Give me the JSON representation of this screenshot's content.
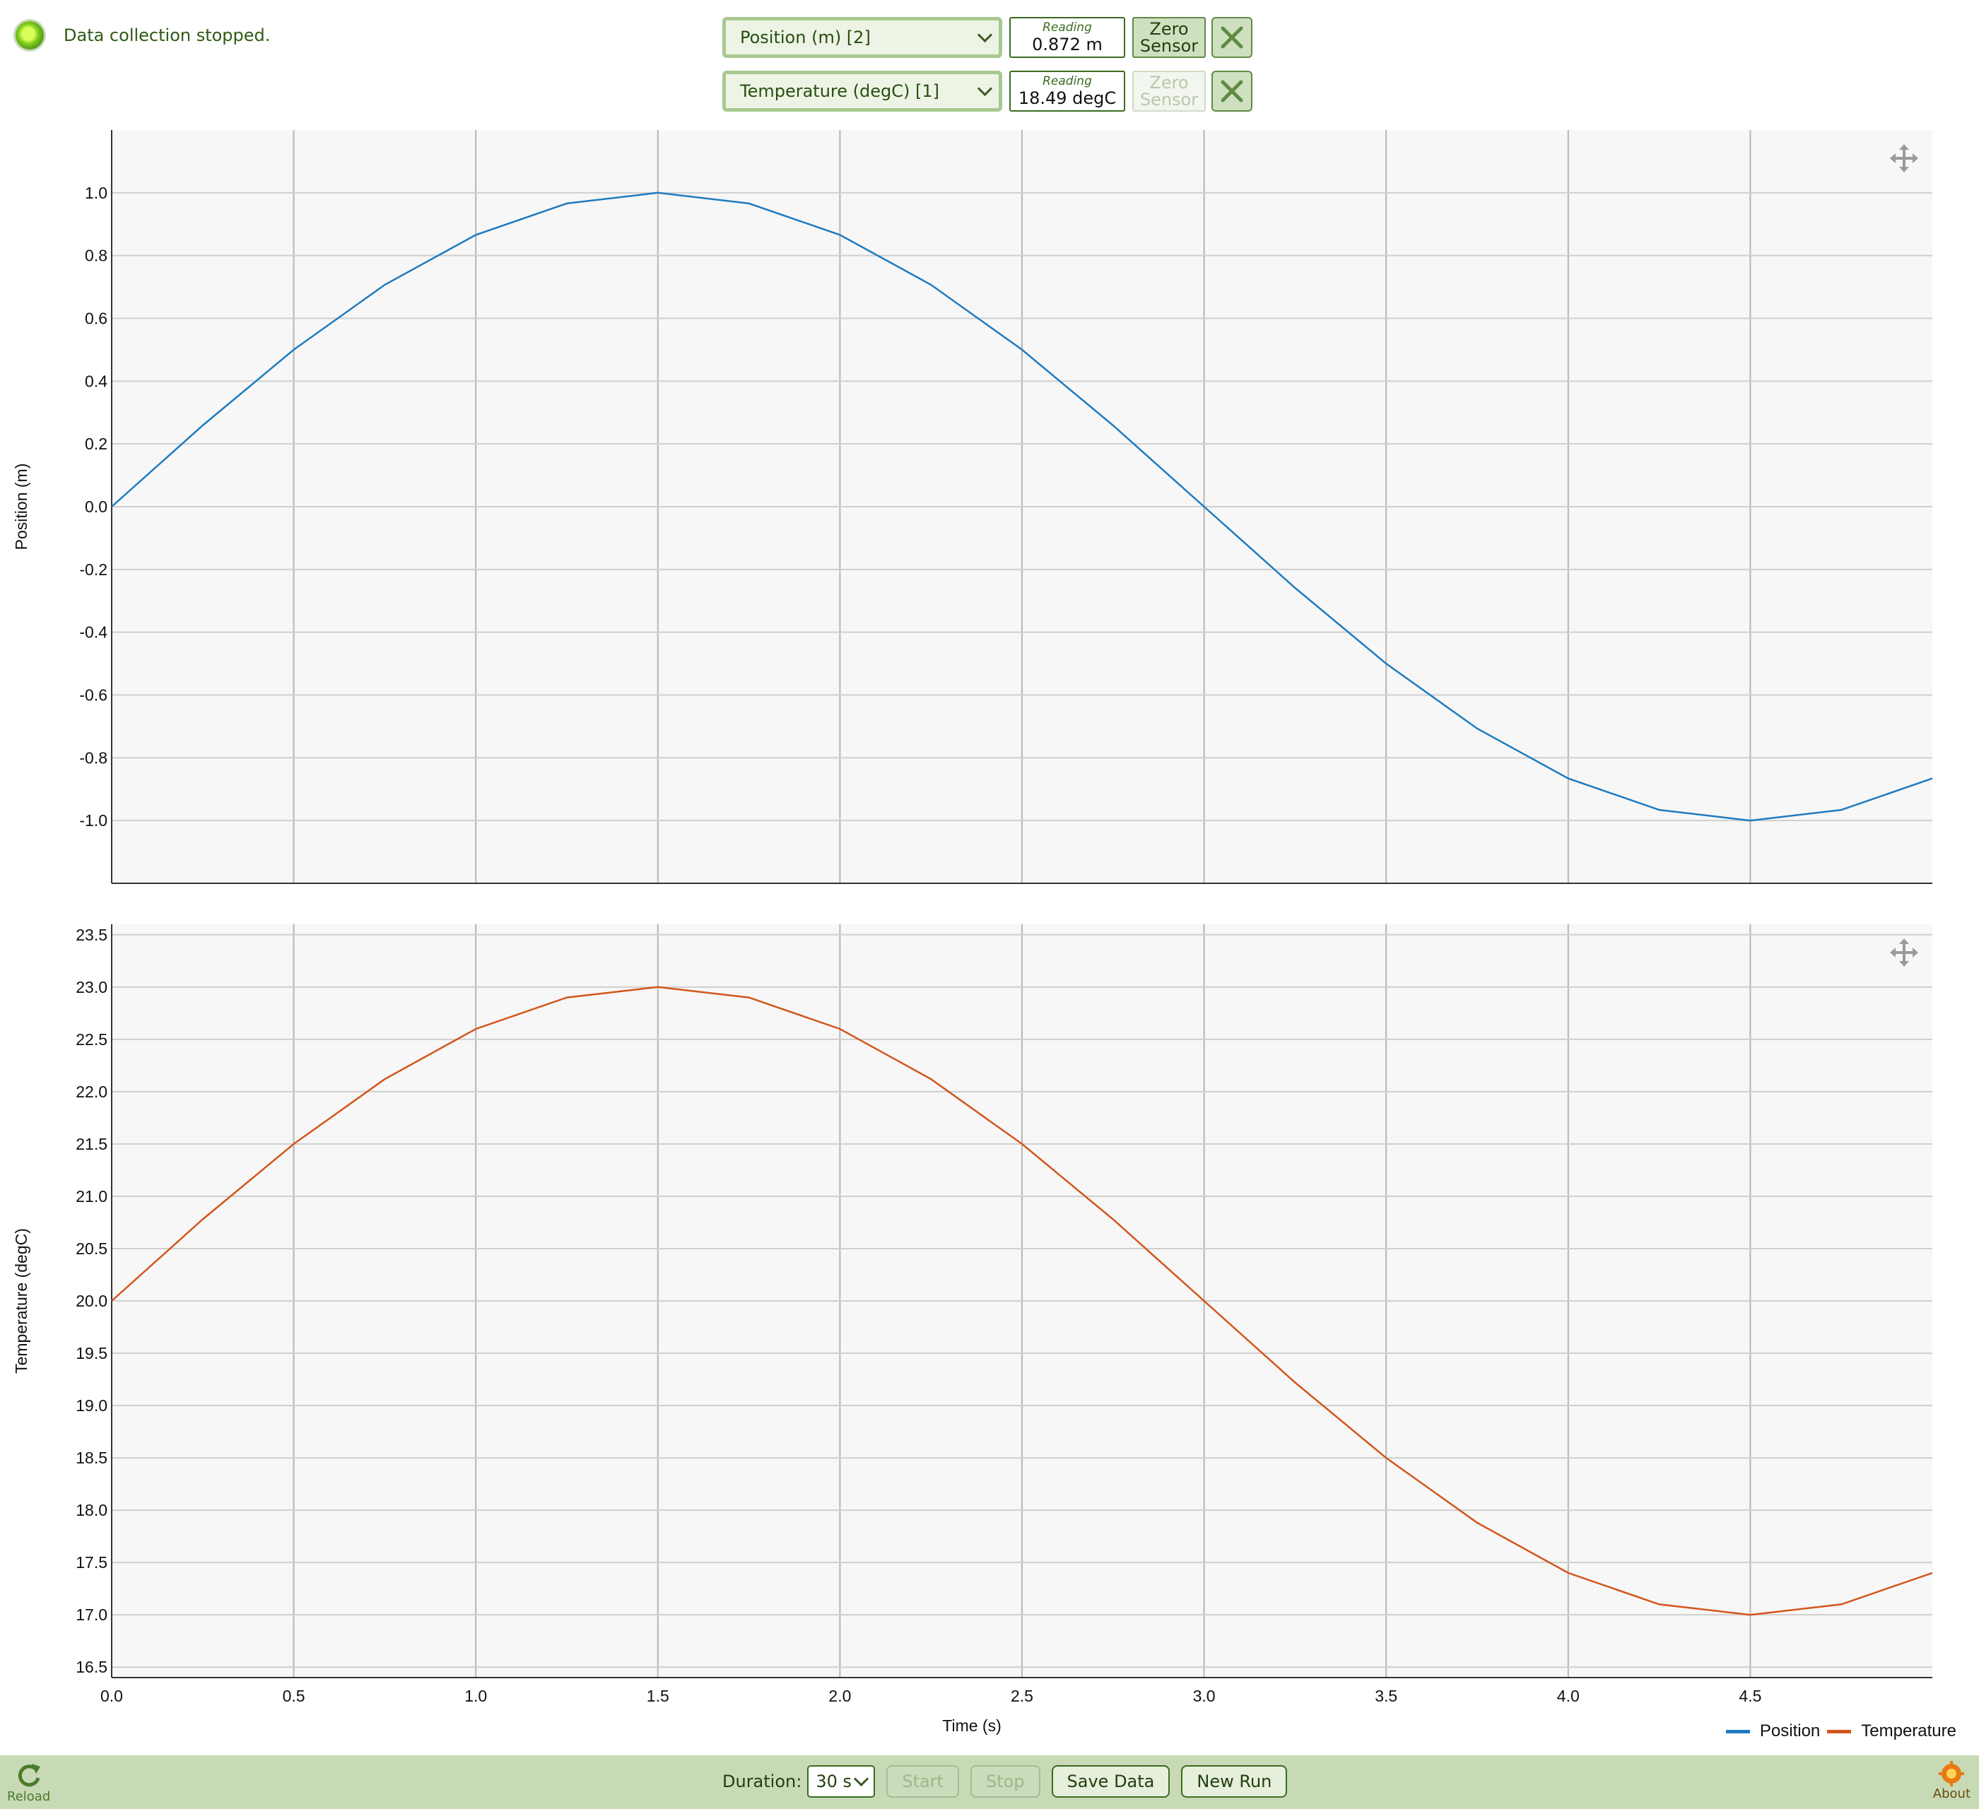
{
  "status": {
    "text": "Data collection stopped."
  },
  "sensors": [
    {
      "select_label": "Position (m) [2]",
      "reading_label": "Reading",
      "reading_value": "0.872 m",
      "zero_label_1": "Zero",
      "zero_label_2": "Sensor",
      "zero_enabled": true
    },
    {
      "select_label": "Temperature (degC) [1]",
      "reading_label": "Reading",
      "reading_value": "18.49 degC",
      "zero_label_1": "Zero",
      "zero_label_2": "Sensor",
      "zero_enabled": false
    }
  ],
  "chart_data": [
    {
      "type": "line",
      "ylabel": "Position (m)",
      "xlabel": "",
      "xlim": [
        0,
        5
      ],
      "ylim": [
        -1.2,
        1.2
      ],
      "xticks": [
        0,
        0.5,
        1,
        1.5,
        2,
        2.5,
        3,
        3.5,
        4,
        4.5
      ],
      "yticks": [
        "1.0",
        "0.8",
        "0.6",
        "0.4",
        "0.2",
        "0.0",
        "-0.2",
        "-0.4",
        "-0.6",
        "-0.8",
        "-1.0"
      ],
      "grid": true,
      "series": [
        {
          "name": "Position",
          "color": "#1f7bbf",
          "x": [
            0,
            0.25,
            0.5,
            0.75,
            1.0,
            1.25,
            1.5,
            1.75,
            2.0,
            2.25,
            2.5,
            2.75,
            3.0,
            3.25,
            3.5,
            3.75,
            4.0,
            4.25,
            4.5,
            4.75,
            5.0
          ],
          "y": [
            0,
            0.259,
            0.5,
            0.707,
            0.866,
            0.966,
            1.0,
            0.966,
            0.866,
            0.707,
            0.5,
            0.259,
            0,
            -0.259,
            -0.5,
            -0.707,
            -0.866,
            -0.966,
            -1.0,
            -0.966,
            -0.866
          ]
        }
      ]
    },
    {
      "type": "line",
      "ylabel": "Temperature (degC)",
      "xlabel": "Time (s)",
      "xlim": [
        0,
        5
      ],
      "ylim": [
        16.4,
        23.6
      ],
      "xticks": [
        "0.0",
        "0.5",
        "1.0",
        "1.5",
        "2.0",
        "2.5",
        "3.0",
        "3.5",
        "4.0",
        "4.5"
      ],
      "yticks": [
        "23.5",
        "23.0",
        "22.5",
        "22.0",
        "21.5",
        "21.0",
        "20.5",
        "20.0",
        "19.5",
        "19.0",
        "18.5",
        "18.0",
        "17.5",
        "17.0",
        "16.5"
      ],
      "grid": true,
      "series": [
        {
          "name": "Temperature",
          "color": "#d2561c",
          "x": [
            0,
            0.25,
            0.5,
            0.75,
            1.0,
            1.25,
            1.5,
            1.75,
            2.0,
            2.25,
            2.5,
            2.75,
            3.0,
            3.25,
            3.5,
            3.75,
            4.0,
            4.25,
            4.5,
            4.75,
            5.0
          ],
          "y": [
            20.0,
            20.78,
            21.5,
            22.12,
            22.6,
            22.9,
            23.0,
            22.9,
            22.6,
            22.12,
            21.5,
            20.78,
            20.0,
            19.22,
            18.5,
            17.88,
            17.4,
            17.1,
            17.0,
            17.1,
            17.4
          ]
        }
      ]
    }
  ],
  "legend": [
    {
      "label": "Position",
      "color": "#1f7bbf"
    },
    {
      "label": "Temperature",
      "color": "#d2561c"
    }
  ],
  "footer": {
    "reload_label": "Reload",
    "about_label": "About",
    "duration_label": "Duration:",
    "duration_value": "30 s",
    "start_label": "Start",
    "stop_label": "Stop",
    "save_label": "Save Data",
    "newrun_label": "New Run"
  },
  "colors": {
    "accent": "#3c6b20",
    "footer_bg": "#c7dab5"
  },
  "icons": {
    "reload": "reload-icon",
    "about": "about-icon",
    "pan": "move-icon",
    "close": "close-icon"
  }
}
